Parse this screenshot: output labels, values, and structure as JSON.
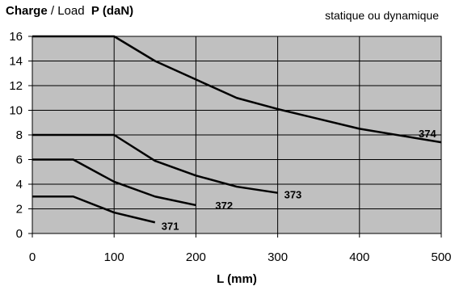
{
  "header": {
    "title_bold": "Charge",
    "title_sep": " / ",
    "title_plain": "Load",
    "title_symbol": "P (daN)",
    "subtitle": "statique ou dynamique"
  },
  "chart_data": {
    "type": "line",
    "title": "Charge / Load P (daN)",
    "subtitle": "statique ou dynamique",
    "xlabel": "L (mm)",
    "ylabel": "",
    "xlim": [
      0,
      500
    ],
    "ylim": [
      0,
      16
    ],
    "x_ticks": [
      0,
      100,
      200,
      300,
      400,
      500
    ],
    "y_ticks": [
      0,
      2,
      4,
      6,
      8,
      10,
      12,
      14,
      16
    ],
    "grid": true,
    "legend": "none",
    "colors": {
      "plot_bg": "#c0c0c0",
      "line": "#000000",
      "grid": "#000000"
    },
    "series": [
      {
        "name": "371",
        "x": [
          0,
          50,
          100,
          150
        ],
        "y": [
          3.0,
          3.0,
          1.7,
          0.9
        ]
      },
      {
        "name": "372",
        "x": [
          0,
          50,
          100,
          150,
          200
        ],
        "y": [
          6.0,
          6.0,
          4.2,
          3.0,
          2.3
        ]
      },
      {
        "name": "373",
        "x": [
          0,
          100,
          150,
          200,
          250,
          300
        ],
        "y": [
          8.0,
          8.0,
          5.9,
          4.7,
          3.8,
          3.3
        ]
      },
      {
        "name": "374",
        "x": [
          0,
          100,
          150,
          200,
          250,
          300,
          400,
          500
        ],
        "y": [
          16.0,
          16.0,
          14.0,
          12.5,
          11.0,
          10.1,
          8.5,
          7.4
        ]
      }
    ]
  }
}
